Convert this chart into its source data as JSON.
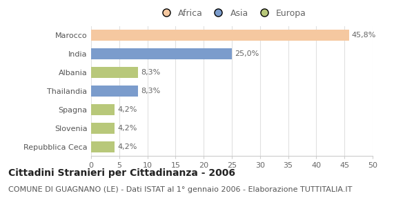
{
  "categories": [
    "Marocco",
    "India",
    "Albania",
    "Thailandia",
    "Spagna",
    "Slovenia",
    "Repubblica Ceca"
  ],
  "values": [
    45.8,
    25.0,
    8.3,
    8.3,
    4.2,
    4.2,
    4.2
  ],
  "labels": [
    "45,8%",
    "25,0%",
    "8,3%",
    "8,3%",
    "4,2%",
    "4,2%",
    "4,2%"
  ],
  "colors": [
    "#f5c8a0",
    "#7b9ccc",
    "#b8c87a",
    "#7b9ccc",
    "#b8c87a",
    "#b8c87a",
    "#b8c87a"
  ],
  "legend_items": [
    {
      "label": "Africa",
      "color": "#f5c8a0"
    },
    {
      "label": "Asia",
      "color": "#7b9ccc"
    },
    {
      "label": "Europa",
      "color": "#b8c87a"
    }
  ],
  "xlim": [
    0,
    50
  ],
  "xticks": [
    0,
    5,
    10,
    15,
    20,
    25,
    30,
    35,
    40,
    45,
    50
  ],
  "title": "Cittadini Stranieri per Cittadinanza - 2006",
  "subtitle": "COMUNE DI GUAGNANO (LE) - Dati ISTAT al 1° gennaio 2006 - Elaborazione TUTTITALIA.IT",
  "background_color": "#ffffff",
  "bar_height": 0.6,
  "title_fontsize": 10,
  "subtitle_fontsize": 8,
  "label_fontsize": 8,
  "tick_fontsize": 8,
  "legend_fontsize": 9
}
